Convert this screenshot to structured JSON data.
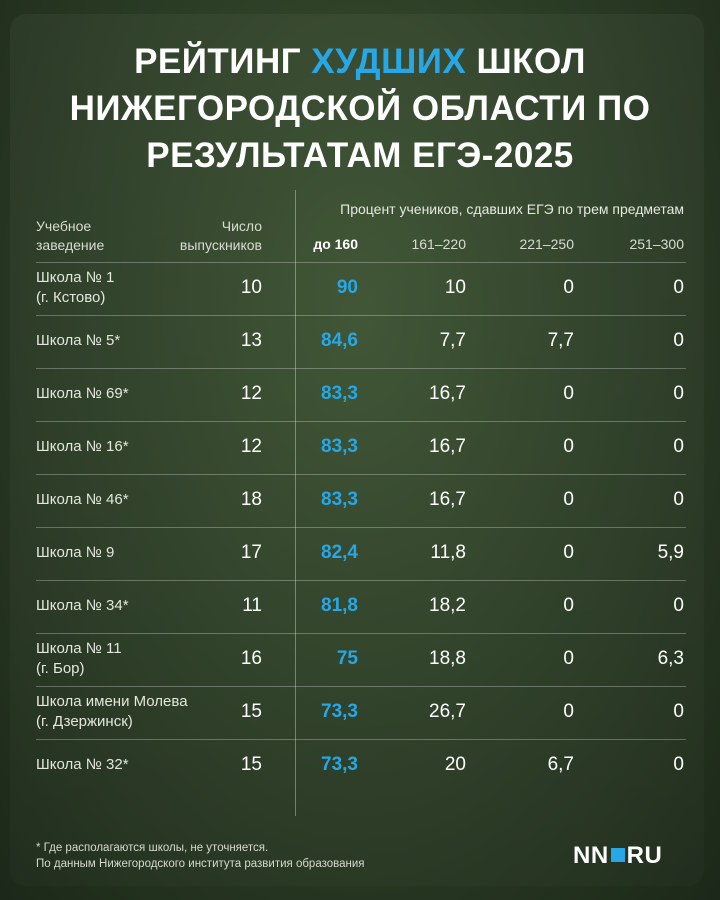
{
  "title": {
    "line1_part1": "РЕЙТИНГ ",
    "line1_accent": "ХУДШИХ",
    "line1_part2": " ШКОЛ",
    "line2": "НИЖЕГОРОДСКОЙ ОБЛАСТИ ПО",
    "line3": "РЕЗУЛЬТАТАМ ЕГЭ-2025"
  },
  "colors": {
    "accent": "#27a7e6",
    "text": "#ffffff",
    "background": "#2d3f27"
  },
  "header": {
    "institution_line1": "Учебное",
    "institution_line2": "заведение",
    "graduates_line1": "Число",
    "graduates_line2": "выпускников",
    "group_label": "Процент учеников, сдавших ЕГЭ по трем предметам",
    "columns": [
      "до 160",
      "161–220",
      "221–250",
      "251–300"
    ]
  },
  "rows": [
    {
      "name1": "Школа № 1",
      "name2": "(г. Кстово)",
      "count": "10",
      "v1": "90",
      "v2": "10",
      "v3": "0",
      "v4": "0"
    },
    {
      "name1": "Школа № 5*",
      "name2": "",
      "count": "13",
      "v1": "84,6",
      "v2": "7,7",
      "v3": "7,7",
      "v4": "0"
    },
    {
      "name1": "Школа № 69*",
      "name2": "",
      "count": "12",
      "v1": "83,3",
      "v2": "16,7",
      "v3": "0",
      "v4": "0"
    },
    {
      "name1": "Школа № 16*",
      "name2": "",
      "count": "12",
      "v1": "83,3",
      "v2": "16,7",
      "v3": "0",
      "v4": "0"
    },
    {
      "name1": "Школа № 46*",
      "name2": "",
      "count": "18",
      "v1": "83,3",
      "v2": "16,7",
      "v3": "0",
      "v4": "0"
    },
    {
      "name1": "Школа № 9",
      "name2": "",
      "count": "17",
      "v1": "82,4",
      "v2": "11,8",
      "v3": "0",
      "v4": "5,9"
    },
    {
      "name1": "Школа № 34*",
      "name2": "",
      "count": "11",
      "v1": "81,8",
      "v2": "18,2",
      "v3": "0",
      "v4": "0"
    },
    {
      "name1": "Школа № 11",
      "name2": "(г. Бор)",
      "count": "16",
      "v1": "75",
      "v2": "18,8",
      "v3": "0",
      "v4": "6,3"
    },
    {
      "name1": "Школа имени Молева",
      "name2": "(г. Дзержинск)",
      "count": "15",
      "v1": "73,3",
      "v2": "26,7",
      "v3": "0",
      "v4": "0"
    },
    {
      "name1": "Школа № 32*",
      "name2": "",
      "count": "15",
      "v1": "73,3",
      "v2": "20",
      "v3": "6,7",
      "v4": "0"
    }
  ],
  "footnote": {
    "line1": "*  Где располагаются школы, не уточняется.",
    "line2": "По данным Нижегородского института развития образования"
  },
  "logo": {
    "left": "NN",
    "right": "RU"
  }
}
